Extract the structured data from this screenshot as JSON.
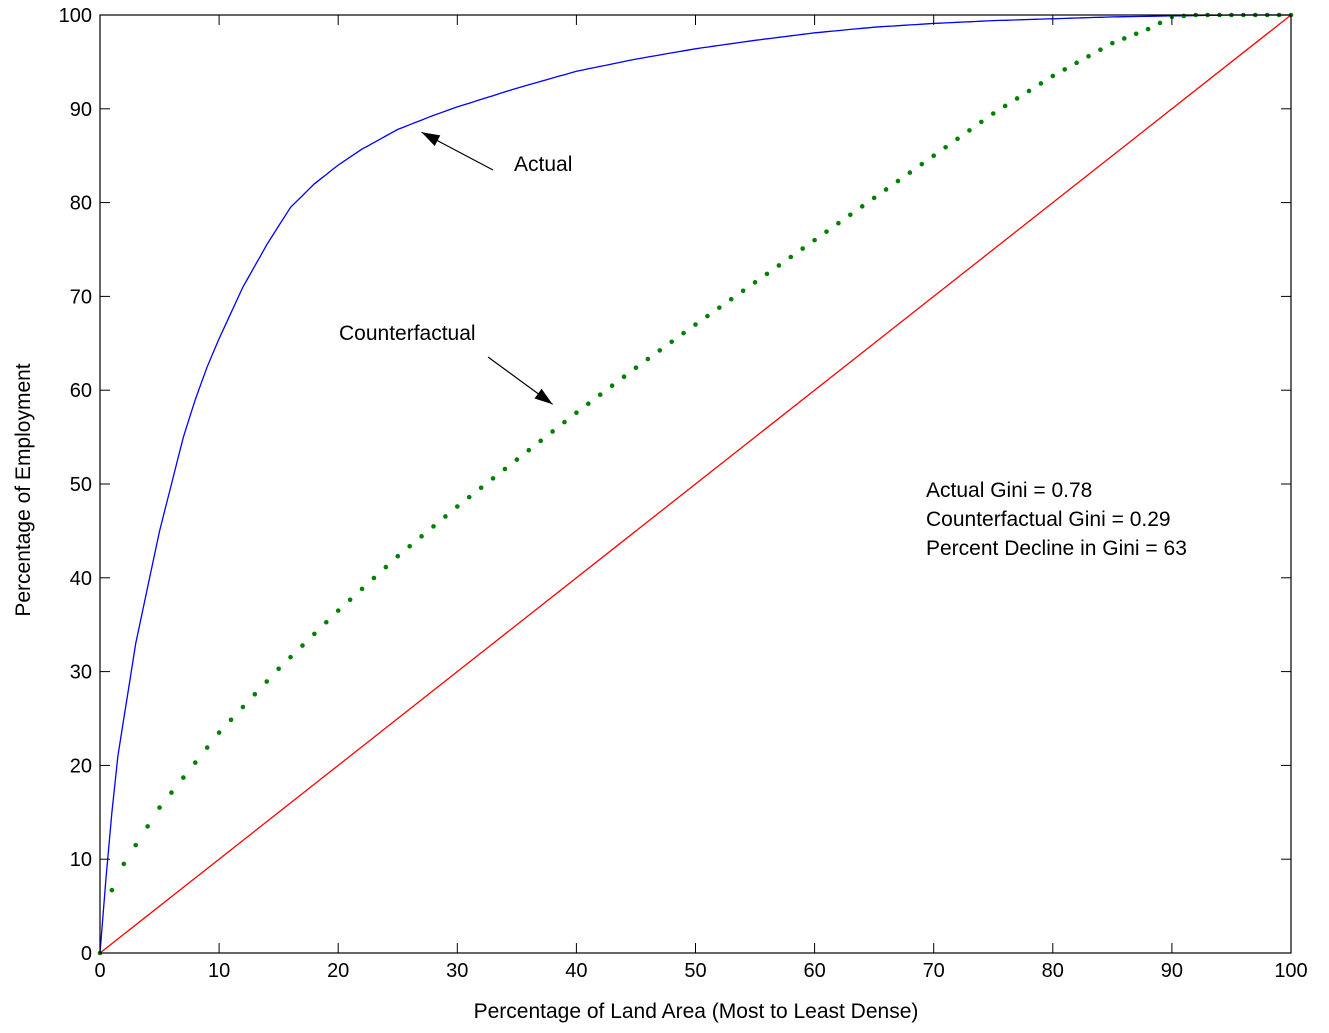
{
  "chart_data": {
    "type": "line",
    "title": "",
    "xlabel": "Percentage of Land Area (Most to Least Dense)",
    "ylabel": "Percentage of Employment",
    "xlim": [
      0,
      100
    ],
    "ylim": [
      0,
      100
    ],
    "xticks": [
      0,
      10,
      20,
      30,
      40,
      50,
      60,
      70,
      80,
      90,
      100
    ],
    "yticks": [
      0,
      10,
      20,
      30,
      40,
      50,
      60,
      70,
      80,
      90,
      100
    ],
    "grid": false,
    "series": [
      {
        "style": "solid",
        "color": "#0000ff",
        "x": [
          0,
          0.5,
          1,
          1.5,
          2,
          3,
          4,
          5,
          6,
          7,
          8,
          9,
          10,
          12,
          14,
          16,
          18,
          20,
          22,
          25,
          28,
          30,
          35,
          40,
          45,
          50,
          55,
          60,
          65,
          70,
          75,
          80,
          85,
          90,
          95,
          100
        ],
        "y": [
          0,
          8,
          15,
          21,
          25,
          33,
          39,
          45,
          50,
          55,
          59,
          62.5,
          65.5,
          71,
          75.5,
          79.5,
          82,
          84,
          85.7,
          87.8,
          89.3,
          90.2,
          92.2,
          94,
          95.3,
          96.4,
          97.3,
          98.1,
          98.7,
          99.1,
          99.4,
          99.6,
          99.8,
          99.9,
          100,
          100
        ]
      },
      {
        "style": "dotted",
        "color": "#007f00",
        "x": [
          0,
          1,
          2,
          3,
          5,
          10,
          15,
          20,
          25,
          30,
          35,
          40,
          45,
          50,
          55,
          60,
          65,
          70,
          75,
          80,
          85,
          88,
          90,
          92,
          95,
          100
        ],
        "y": [
          0,
          6.7,
          9.5,
          11.5,
          15.5,
          23.5,
          30.3,
          36.5,
          42.3,
          47.6,
          52.6,
          57.6,
          62.4,
          67.0,
          71.5,
          76.0,
          80.5,
          85.0,
          89.5,
          93.5,
          97.0,
          98.5,
          99.8,
          100,
          100,
          100
        ]
      },
      {
        "style": "solid",
        "color": "#ff0000",
        "x": [
          0,
          100
        ],
        "y": [
          0,
          100
        ]
      }
    ],
    "annotations": [
      {
        "text": "Actual",
        "arrow_to": [
          27,
          87.5
        ]
      },
      {
        "text": "Counterfactual",
        "arrow_to": [
          38,
          58.5
        ]
      }
    ],
    "stats_text": [
      "Actual Gini = 0.78",
      "Counterfactual Gini = 0.29",
      "Percent Decline in Gini = 63"
    ]
  }
}
